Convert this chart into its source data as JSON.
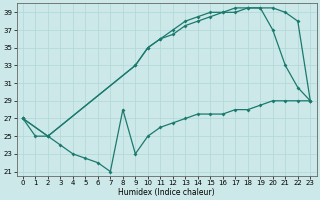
{
  "xlabel": "Humidex (Indice chaleur)",
  "bg_color": "#cde8e8",
  "grid_color": "#b0d8d8",
  "line_color": "#1a7a6e",
  "xlim": [
    -0.5,
    23.5
  ],
  "ylim": [
    20.5,
    40
  ],
  "yticks": [
    21,
    23,
    25,
    27,
    29,
    31,
    33,
    35,
    37,
    39
  ],
  "xticks": [
    0,
    1,
    2,
    3,
    4,
    5,
    6,
    7,
    8,
    9,
    10,
    11,
    12,
    13,
    14,
    15,
    16,
    17,
    18,
    19,
    20,
    21,
    22,
    23
  ],
  "line_min_x": [
    0,
    1,
    2,
    3,
    4,
    5,
    6,
    7,
    8,
    9,
    10,
    11,
    12,
    13,
    14,
    15,
    16,
    17,
    18,
    19,
    20,
    21,
    22,
    23
  ],
  "line_min_y": [
    27,
    25,
    25,
    24,
    23,
    22.5,
    22,
    21,
    28,
    23,
    25,
    26,
    26.5,
    27,
    27.5,
    27.5,
    27.5,
    28,
    28,
    28.5,
    29,
    29,
    29,
    29
  ],
  "line_mid_x": [
    0,
    2,
    9,
    10,
    11,
    12,
    13,
    14,
    15,
    16,
    17,
    18,
    19,
    20,
    21,
    22,
    23
  ],
  "line_mid_y": [
    27,
    25,
    33,
    35,
    36,
    36.5,
    37.5,
    38,
    38.5,
    39,
    39,
    39.5,
    39.5,
    37,
    33,
    30.5,
    29
  ],
  "line_max_x": [
    0,
    2,
    9,
    10,
    11,
    12,
    13,
    14,
    15,
    16,
    17,
    18,
    19,
    20,
    21,
    22,
    23
  ],
  "line_max_y": [
    27,
    25,
    33,
    35,
    36,
    37,
    38,
    38.5,
    39,
    39,
    39.5,
    39.5,
    39.5,
    39.5,
    39,
    38,
    29
  ]
}
